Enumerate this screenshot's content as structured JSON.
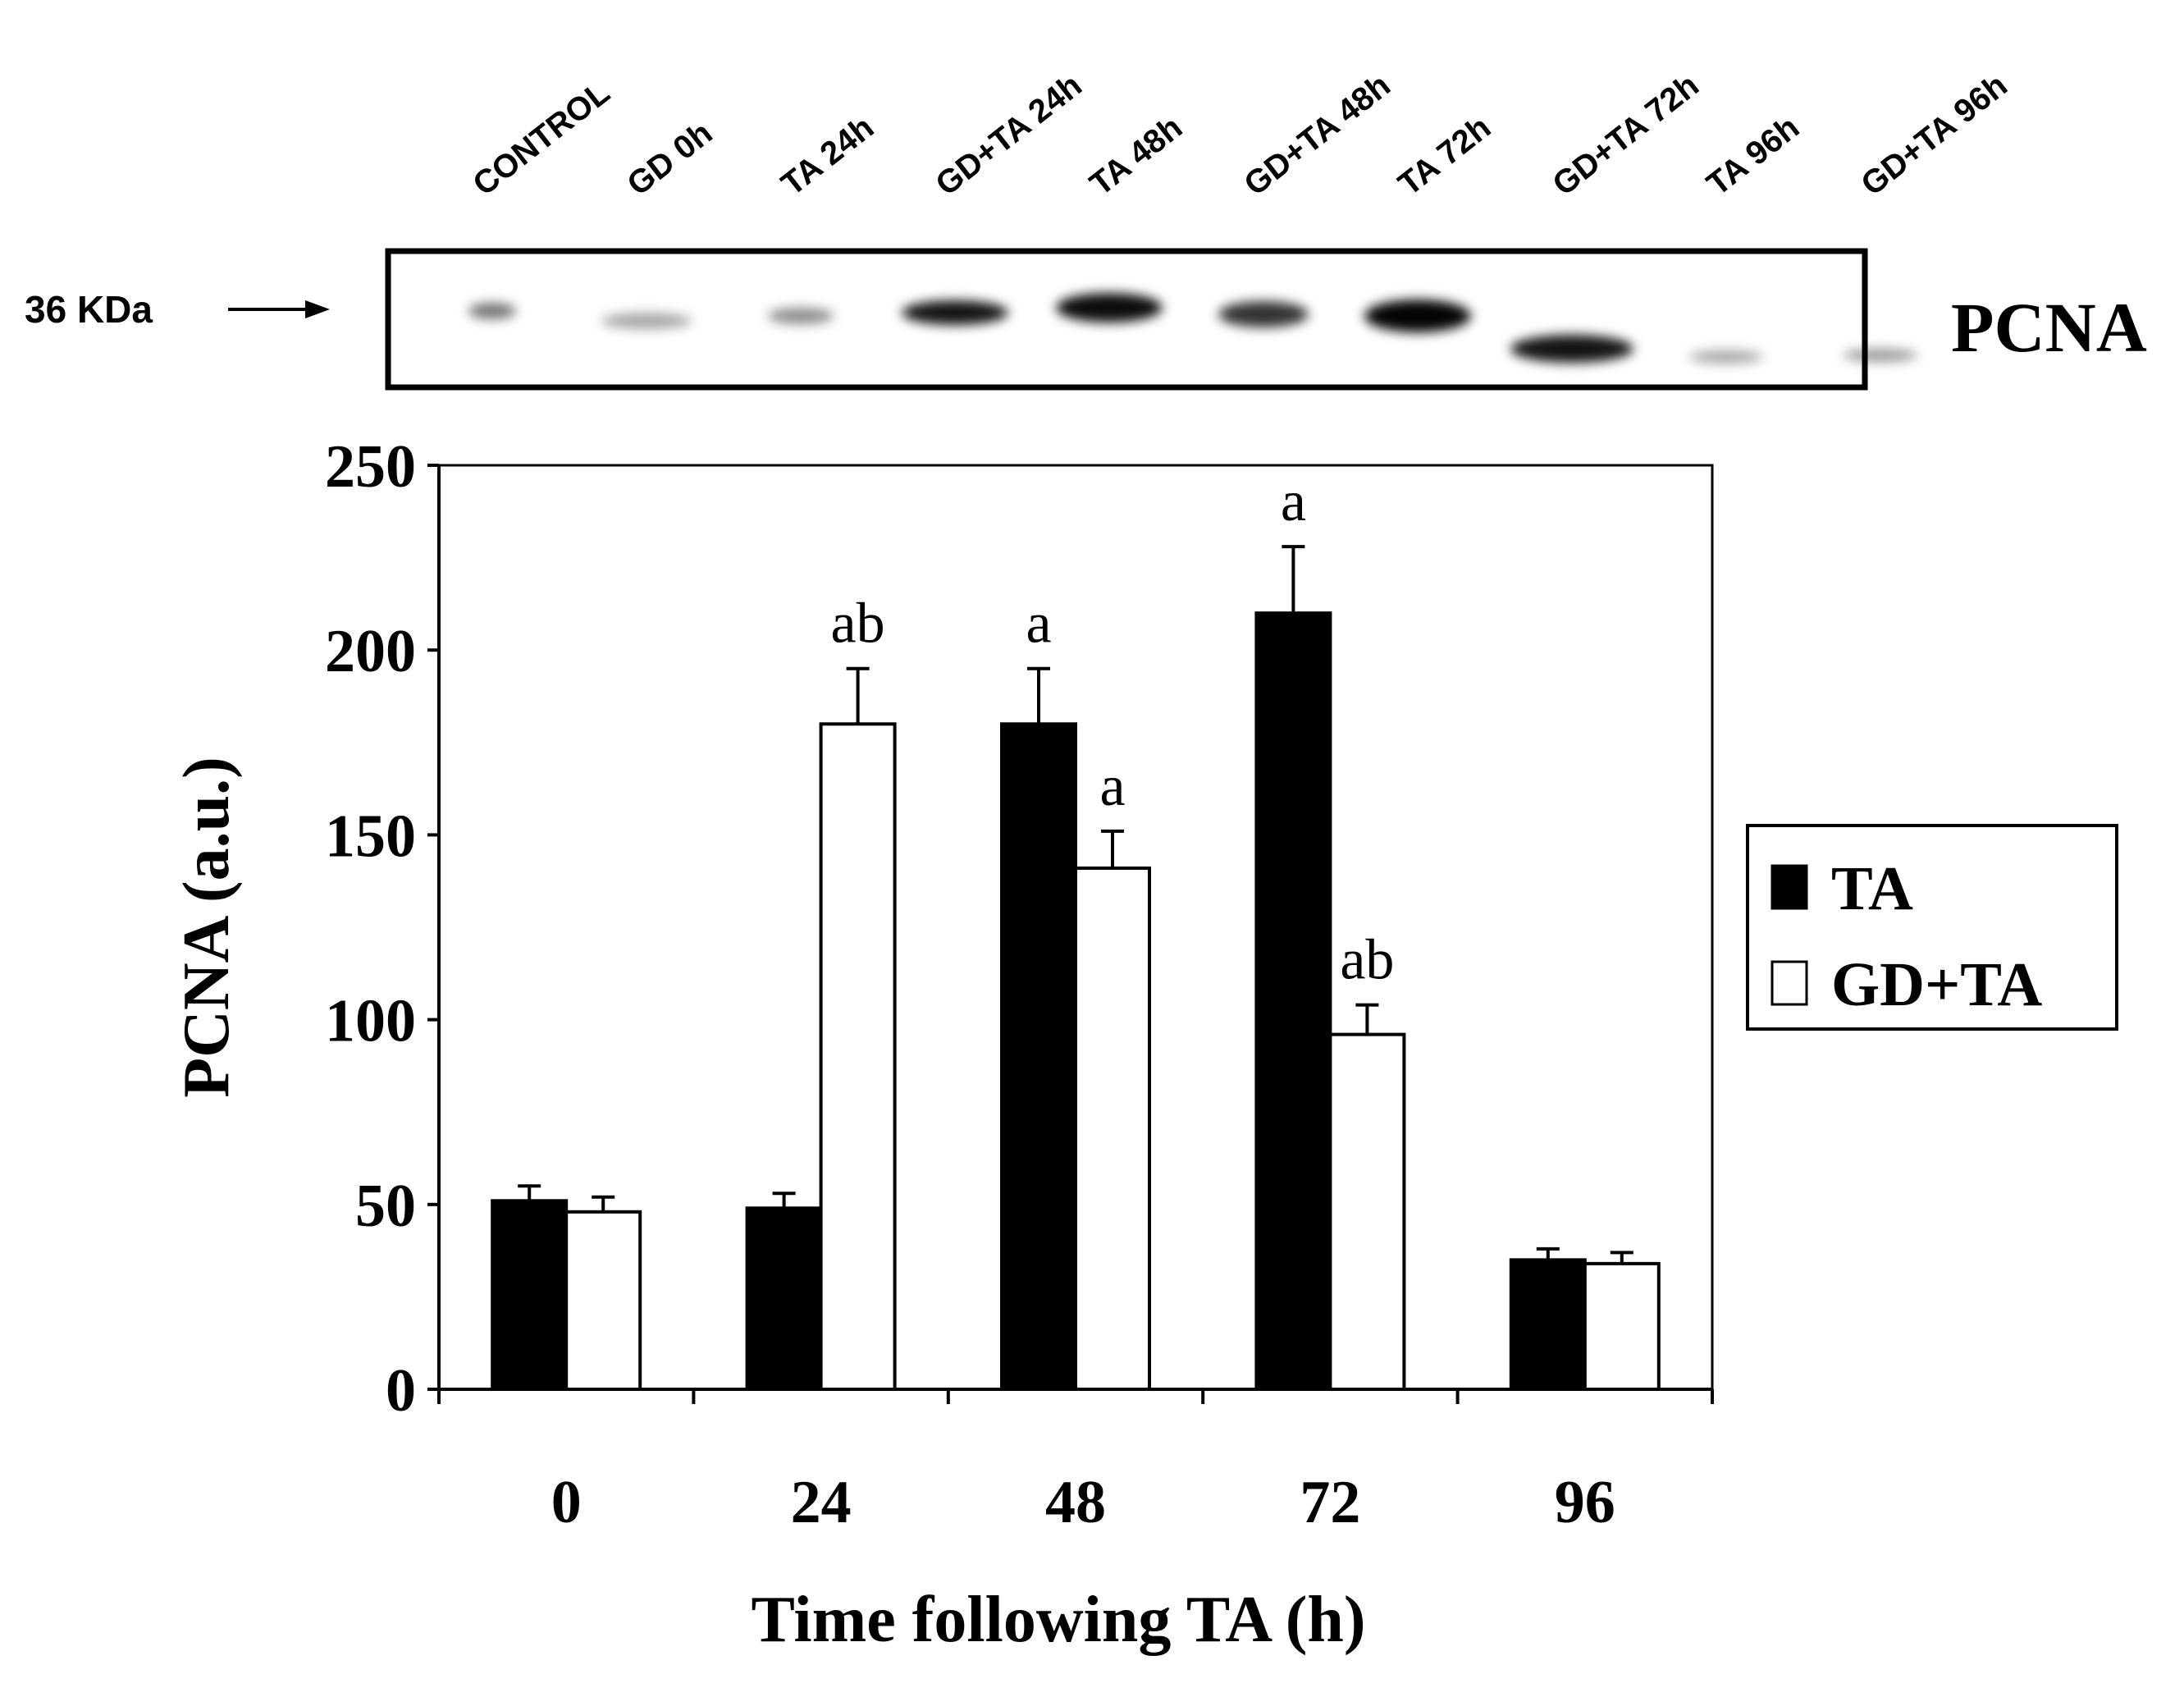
{
  "blot": {
    "marker_label": "36 KDa",
    "protein_label": "PCNA",
    "lanes": [
      "CONTROL",
      "GD 0h",
      "TA 24h",
      "GD+TA 24h",
      "TA 48h",
      "GD+TA 48h",
      "TA 72h",
      "GD+TA 72h",
      "TA 96h",
      "GD+TA 96h"
    ]
  },
  "chart_data": {
    "type": "bar",
    "title": "",
    "xlabel": "Time following TA (h)",
    "ylabel": "PCNA (a.u.)",
    "ylim": [
      0,
      250
    ],
    "yticks": [
      0,
      50,
      100,
      150,
      200,
      250
    ],
    "categories": [
      "0",
      "24",
      "48",
      "72",
      "96"
    ],
    "series": [
      {
        "name": "TA",
        "color": "#000000",
        "values": [
          51,
          49,
          180,
          210,
          35
        ],
        "errors": [
          4,
          4,
          15,
          18,
          3
        ],
        "annotations": [
          "",
          "",
          "a",
          "a",
          ""
        ]
      },
      {
        "name": "GD+TA",
        "color": "#ffffff",
        "values": [
          48,
          180,
          141,
          96,
          34
        ],
        "errors": [
          4,
          15,
          10,
          8,
          3
        ],
        "annotations": [
          "",
          "ab",
          "a",
          "ab",
          ""
        ]
      }
    ],
    "legend_position": "right"
  }
}
